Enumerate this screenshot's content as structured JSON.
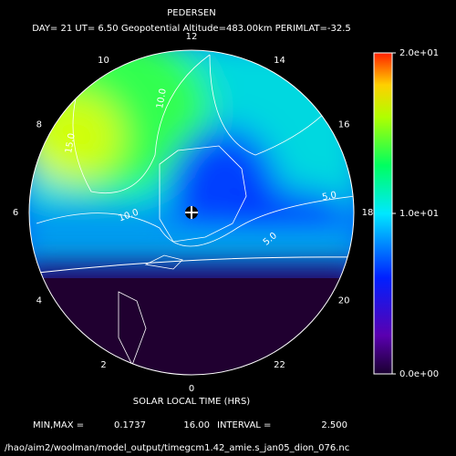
{
  "chart_data": {
    "type": "polar-contour",
    "title": "PEDERSEN",
    "subtitle": "DAY= 21 UT= 6.50 Geopotential Altitude=483.00km PERIMLAT=-32.5",
    "hours": [
      12,
      14,
      16,
      18,
      20,
      22,
      0,
      2,
      4,
      6,
      8,
      10
    ],
    "xlabel": "SOLAR LOCAL TIME (HRS)",
    "clim": [
      0,
      20
    ],
    "cticks": [
      {
        "value": 20,
        "label": "2.0e+01"
      },
      {
        "value": 10,
        "label": "1.0e+01"
      },
      {
        "value": 0,
        "label": "0.0e+00"
      }
    ],
    "contours": [
      {
        "value": 10,
        "label": "10.0"
      },
      {
        "value": 15,
        "label": "15.0"
      },
      {
        "value": 10,
        "label": "10.0"
      },
      {
        "value": 5,
        "label": "5.0"
      },
      {
        "value": 5,
        "label": "5.0"
      }
    ],
    "min_max_text": "MIN,MAX =",
    "min": 0.1737,
    "max": {
      "value": 16,
      "label": "16.00"
    },
    "interval_text": "INTERVAL =",
    "interval": {
      "value": 2.5,
      "label": "2.500"
    },
    "file": "/hao/aim2/woolman/model_output/timegcm1.42_amie.s_jan05_dion_076.nc"
  }
}
